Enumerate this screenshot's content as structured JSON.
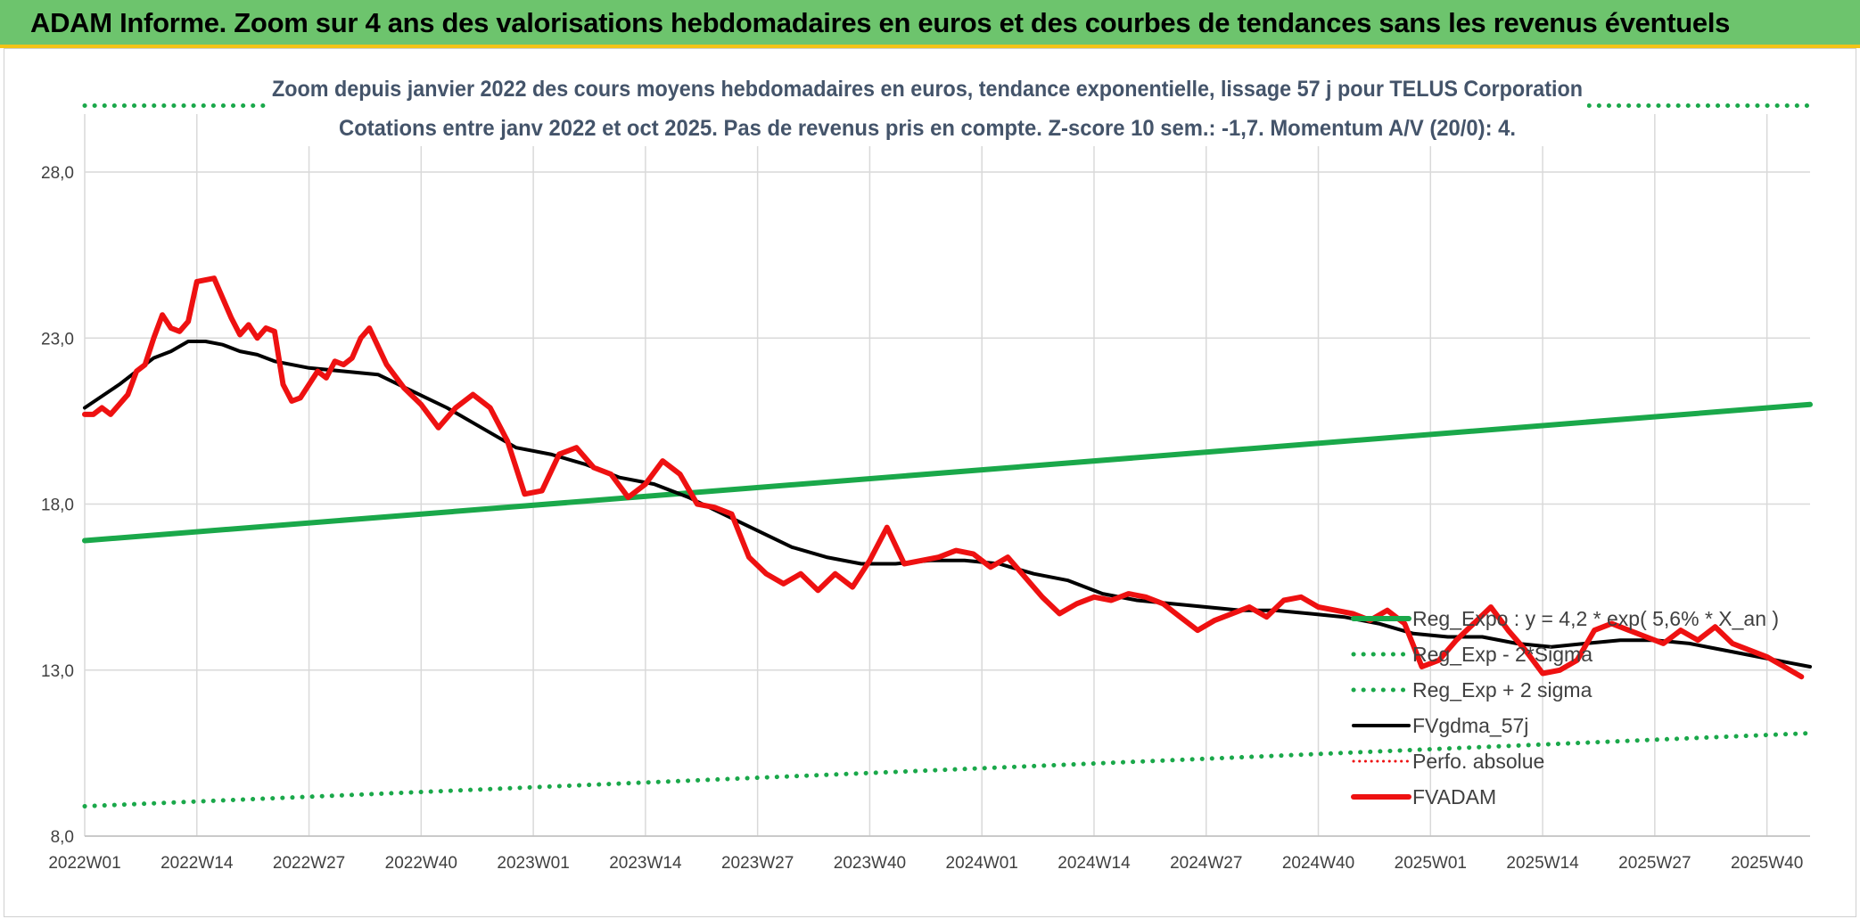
{
  "banner": {
    "title": "ADAM Informe. Zoom sur 4 ans des valorisations hebdomadaires en euros et des courbes de tendances sans les revenus éventuels"
  },
  "colors": {
    "banner_bg": "#6dc46d",
    "banner_border": "#f2c318",
    "trend_green": "#1aa84a",
    "fvadam_red": "#ee1111",
    "fvgdma_black": "#000000",
    "title_text": "#44546a"
  },
  "chart_data": {
    "type": "line",
    "title": "Zoom depuis janvier 2022 des cours moyens hebdomadaires en euros, tendance exponentielle, lissage 57 j pour TELUS Corporation",
    "subtitle": "Cotations entre janv 2022 et oct 2025. Pas de revenus pris en compte. Z-score 10 sem.: -1,7. Momentum A/V (20/0): 4.",
    "xlabel": "",
    "ylabel": "",
    "ylim": [
      8,
      28
    ],
    "yticks": [
      "8,0",
      "13,0",
      "18,0",
      "23,0",
      "28,0"
    ],
    "ytick_values": [
      8,
      13,
      18,
      23,
      28
    ],
    "xticks": [
      "2022W01",
      "2022W14",
      "2022W27",
      "2022W40",
      "2023W01",
      "2023W14",
      "2023W27",
      "2023W40",
      "2024W01",
      "2024W14",
      "2024W27",
      "2024W40",
      "2025W01",
      "2025W14",
      "2025W27",
      "2025W40"
    ],
    "xtick_weeks": [
      0,
      13,
      26,
      39,
      52,
      65,
      78,
      91,
      104,
      117,
      130,
      143,
      156,
      169,
      182,
      195
    ],
    "x_domain": [
      0,
      200
    ],
    "grid": true,
    "legend_position": "bottom-right",
    "series": [
      {
        "name": "Reg_Expo : y = 4,2 * exp( 5,6% * X_an )",
        "color": "#1aa84a",
        "style": "solid",
        "width": 6,
        "x": [
          0,
          200
        ],
        "y": [
          16.9,
          21.0
        ]
      },
      {
        "name": "Reg_Exp - 2*Sigma",
        "color": "#1aa84a",
        "style": "dotted",
        "width": 5,
        "x": [
          0,
          200
        ],
        "y": [
          8.9,
          11.1
        ]
      },
      {
        "name": "Reg_Exp + 2 sigma",
        "color": "#1aa84a",
        "style": "dotted",
        "width": 5,
        "x": [
          0,
          200
        ],
        "y": [
          30.0,
          30.0
        ]
      },
      {
        "name": "FVgdma_57j",
        "color": "#000000",
        "style": "solid",
        "width": 4,
        "x": [
          0,
          4,
          8,
          10,
          12,
          14,
          16,
          18,
          20,
          22,
          26,
          30,
          34,
          38,
          42,
          46,
          50,
          54,
          58,
          62,
          66,
          70,
          74,
          78,
          82,
          86,
          90,
          94,
          98,
          102,
          106,
          110,
          114,
          118,
          122,
          126,
          130,
          134,
          138,
          142,
          146,
          150,
          154,
          158,
          162,
          166,
          170,
          174,
          178,
          182,
          186,
          190,
          194,
          198,
          200
        ],
        "y": [
          20.9,
          21.6,
          22.4,
          22.6,
          22.9,
          22.9,
          22.8,
          22.6,
          22.5,
          22.3,
          22.1,
          22.0,
          21.9,
          21.4,
          20.9,
          20.3,
          19.7,
          19.5,
          19.2,
          18.8,
          18.6,
          18.2,
          17.7,
          17.2,
          16.7,
          16.4,
          16.2,
          16.2,
          16.3,
          16.3,
          16.2,
          15.9,
          15.7,
          15.3,
          15.1,
          15.0,
          14.9,
          14.8,
          14.8,
          14.7,
          14.6,
          14.4,
          14.1,
          14.0,
          14.0,
          13.8,
          13.7,
          13.8,
          13.9,
          13.9,
          13.8,
          13.6,
          13.4,
          13.2,
          13.1
        ]
      },
      {
        "name": "Perfo. absolue",
        "color": "#ee1111",
        "style": "dotted",
        "width": 3,
        "x": [],
        "y": []
      },
      {
        "name": "FVADAM",
        "color": "#ee1111",
        "style": "solid",
        "width": 6,
        "x": [
          0,
          1,
          2,
          3,
          5,
          6,
          7,
          8,
          9,
          10,
          11,
          12,
          13,
          15,
          16,
          17,
          18,
          19,
          20,
          21,
          22,
          23,
          24,
          25,
          27,
          28,
          29,
          30,
          31,
          32,
          33,
          35,
          37,
          39,
          41,
          43,
          45,
          46,
          47,
          49,
          51,
          53,
          55,
          57,
          59,
          61,
          63,
          65,
          67,
          69,
          71,
          73,
          75,
          77,
          79,
          81,
          83,
          85,
          87,
          89,
          91,
          93,
          95,
          97,
          99,
          101,
          103,
          105,
          107,
          109,
          111,
          113,
          115,
          117,
          119,
          121,
          123,
          125,
          127,
          129,
          131,
          133,
          135,
          137,
          139,
          141,
          143,
          145,
          147,
          149,
          151,
          153,
          155,
          157,
          159,
          161,
          163,
          165,
          167,
          169,
          171,
          173,
          175,
          177,
          179,
          181,
          183,
          185,
          187,
          189,
          191,
          193,
          195,
          197,
          199
        ],
        "y": [
          20.7,
          20.7,
          20.9,
          20.7,
          21.3,
          22.0,
          22.2,
          23.0,
          23.7,
          23.3,
          23.2,
          23.5,
          24.7,
          24.8,
          24.2,
          23.6,
          23.1,
          23.4,
          23.0,
          23.3,
          23.2,
          21.6,
          21.1,
          21.2,
          22.0,
          21.8,
          22.3,
          22.2,
          22.4,
          23.0,
          23.3,
          22.2,
          21.5,
          21.0,
          20.3,
          20.9,
          21.3,
          21.1,
          20.9,
          19.9,
          18.3,
          18.4,
          19.5,
          19.7,
          19.1,
          18.9,
          18.2,
          18.6,
          19.3,
          18.9,
          18.0,
          17.9,
          17.7,
          16.4,
          15.9,
          15.6,
          15.9,
          15.4,
          15.9,
          15.5,
          16.3,
          17.3,
          16.2,
          16.3,
          16.4,
          16.6,
          16.5,
          16.1,
          16.4,
          15.8,
          15.2,
          14.7,
          15.0,
          15.2,
          15.1,
          15.3,
          15.2,
          15.0,
          14.6,
          14.2,
          14.5,
          14.7,
          14.9,
          14.6,
          15.1,
          15.2,
          14.9,
          14.8,
          14.7,
          14.5,
          14.8,
          14.4,
          13.1,
          13.3,
          13.9,
          14.4,
          14.9,
          14.2,
          13.6,
          12.9,
          13.0,
          13.3,
          14.2,
          14.4,
          14.2,
          14.0,
          13.8,
          14.2,
          13.9,
          14.3,
          13.8,
          13.6,
          13.4,
          13.1,
          12.8
        ]
      }
    ]
  }
}
